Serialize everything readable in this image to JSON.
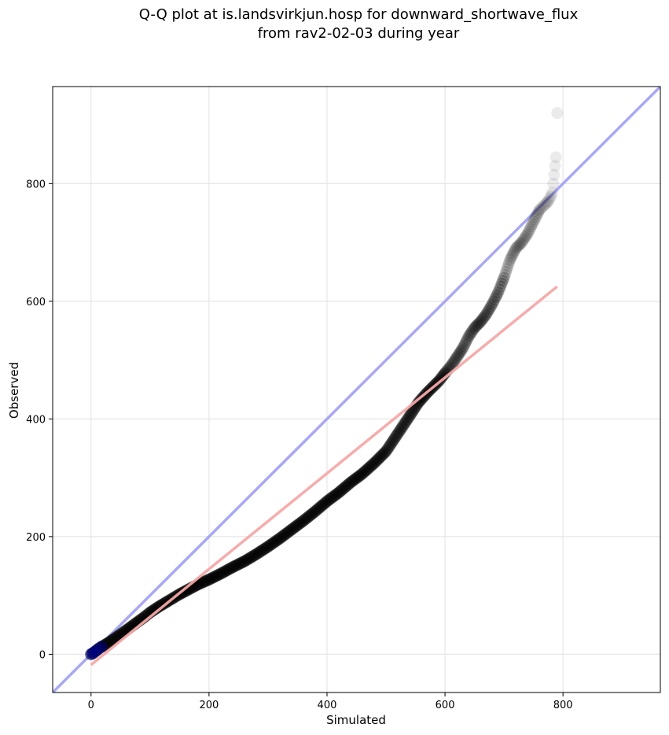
{
  "chart_data": {
    "type": "scatter",
    "title": [
      "Q-Q plot at is.landsvirkjun.hosp for downward_shortwave_flux",
      "from rav2-02-03 during year"
    ],
    "xlabel": "Simulated",
    "ylabel": "Observed",
    "xlim": [
      -65,
      965
    ],
    "ylim": [
      -65,
      965
    ],
    "xticks": [
      0,
      200,
      400,
      600,
      800
    ],
    "yticks": [
      0,
      200,
      400,
      600,
      800
    ],
    "grid": true,
    "colors": {
      "points": "#000000",
      "identity_line": "#a8a8f5",
      "fit_line": "#f5a8a8",
      "low_points": "#00008b"
    },
    "series": [
      {
        "kind": "points",
        "x": [
          0,
          2,
          5,
          10,
          15,
          20,
          30,
          40,
          50,
          60,
          75,
          90,
          100,
          115,
          130,
          150,
          165,
          180,
          200,
          220,
          240,
          260,
          280,
          300,
          320,
          340,
          360,
          380,
          400,
          420,
          440,
          460,
          480,
          500,
          520,
          540,
          555,
          570,
          580,
          590,
          600,
          610,
          620,
          630,
          640,
          650,
          660,
          670,
          680,
          690,
          700,
          705,
          710,
          715,
          720,
          730,
          740,
          750,
          760,
          770,
          775,
          780,
          782,
          785,
          788,
          790
        ],
        "y": [
          0,
          1,
          3,
          7,
          11,
          14,
          20,
          27,
          34,
          41,
          52,
          63,
          71,
          81,
          90,
          102,
          110,
          118,
          127,
          137,
          148,
          158,
          170,
          183,
          197,
          212,
          227,
          243,
          260,
          275,
          292,
          307,
          325,
          345,
          375,
          405,
          428,
          445,
          455,
          465,
          478,
          490,
          505,
          520,
          540,
          555,
          565,
          578,
          595,
          615,
          640,
          655,
          670,
          680,
          690,
          700,
          715,
          735,
          755,
          765,
          770,
          780,
          785,
          815,
          845,
          920
        ]
      },
      {
        "kind": "line",
        "name": "identity",
        "x": [
          -65,
          965
        ],
        "y": [
          -65,
          965
        ]
      },
      {
        "kind": "line",
        "name": "fit",
        "x": [
          0,
          790
        ],
        "y": [
          -18,
          625
        ]
      }
    ]
  }
}
